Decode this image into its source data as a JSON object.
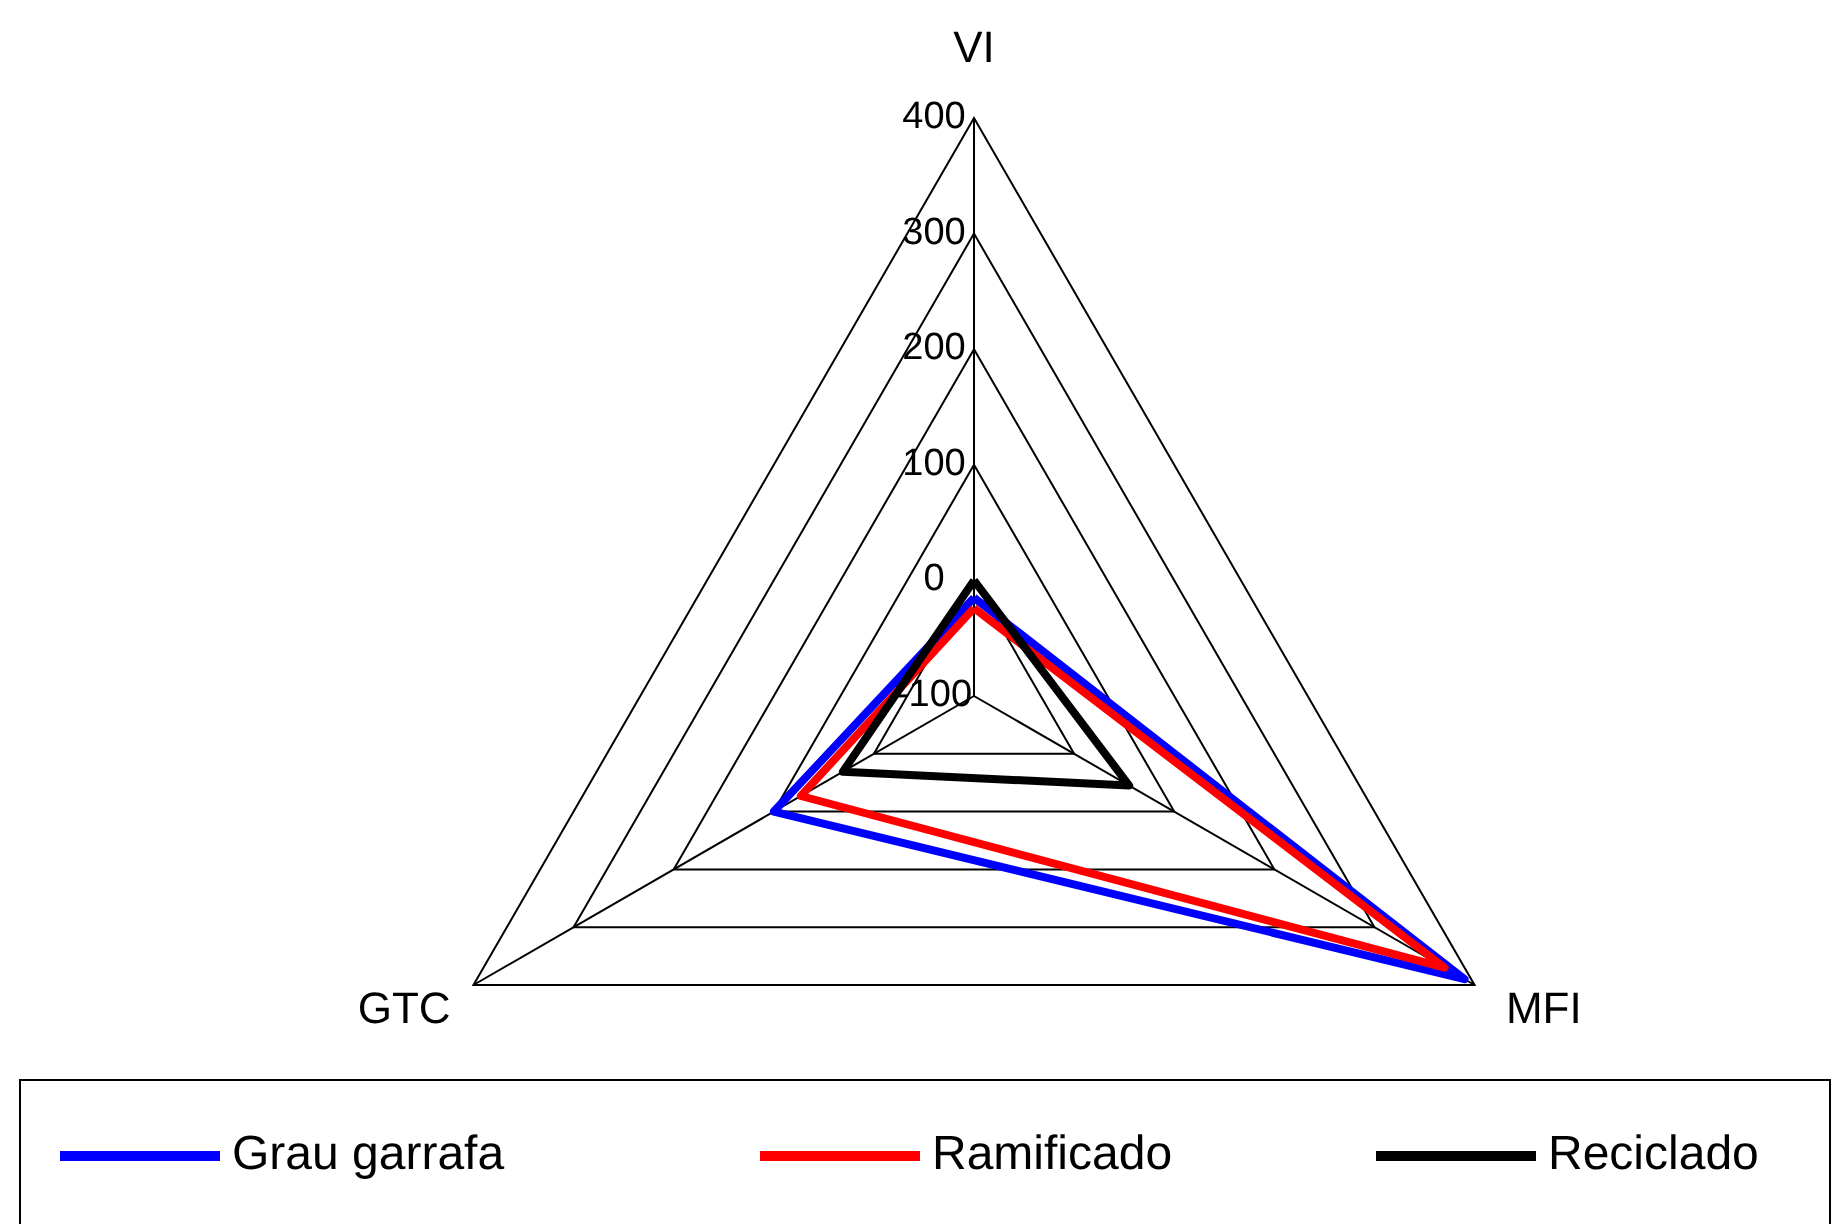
{
  "chart_data": {
    "type": "radar",
    "categories": [
      "VI",
      "MFI",
      "GTC"
    ],
    "series": [
      {
        "name": "Grau garrafa",
        "color": "#0000ff",
        "values": [
          -15,
          390,
          100
        ]
      },
      {
        "name": "Ramificado",
        "color": "#ff0000",
        "values": [
          -24,
          370,
          73
        ]
      },
      {
        "name": "Reciclado",
        "color": "#000000",
        "values": [
          0,
          55,
          31
        ]
      }
    ],
    "ylim": [
      -100,
      400
    ],
    "yticks": [
      -100,
      0,
      100,
      200,
      300,
      400
    ],
    "legend": "bottom",
    "grid": true
  }
}
